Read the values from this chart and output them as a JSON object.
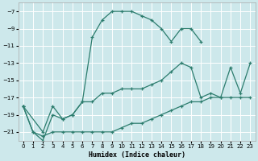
{
  "xlabel": "Humidex (Indice chaleur)",
  "background_color": "#cde8eb",
  "grid_color": "#ffffff",
  "line_color": "#2d7d6e",
  "xlim": [
    -0.5,
    23.5
  ],
  "ylim": [
    -22,
    -6
  ],
  "xticks": [
    0,
    1,
    2,
    3,
    4,
    5,
    6,
    7,
    8,
    9,
    10,
    11,
    12,
    13,
    14,
    15,
    16,
    17,
    18,
    19,
    20,
    21,
    22,
    23
  ],
  "yticks": [
    -7,
    -9,
    -11,
    -13,
    -15,
    -17,
    -19,
    -21
  ],
  "line1_x": [
    0,
    1,
    2,
    3,
    4,
    5,
    6,
    7,
    8,
    9,
    10,
    11,
    12,
    13,
    14,
    15,
    16,
    17,
    18
  ],
  "line1_y": [
    -18,
    -21,
    -22,
    -19,
    -19.5,
    -19,
    -17.5,
    -10,
    -8,
    -7,
    -7,
    -7,
    -7.5,
    -8,
    -9,
    -10.5,
    -9,
    -9,
    -10.5
  ],
  "line2_x": [
    0,
    2,
    3,
    4,
    5,
    6,
    7,
    8,
    9,
    10,
    11,
    12,
    13,
    14,
    15,
    16,
    17,
    18,
    19,
    20,
    21,
    22,
    23
  ],
  "line2_y": [
    -18,
    -21,
    -18,
    -19.5,
    -19,
    -17.5,
    -17.5,
    -16.5,
    -16.5,
    -16,
    -16,
    -16,
    -15.5,
    -15,
    -14,
    -13,
    -13.5,
    -17,
    -16.5,
    -17,
    -13.5,
    -16.5,
    -13
  ],
  "line3_x": [
    0,
    1,
    2,
    3,
    4,
    5,
    6,
    7,
    8,
    9,
    10,
    11,
    12,
    13,
    14,
    15,
    16,
    17,
    18,
    19,
    20,
    21,
    22,
    23
  ],
  "line3_y": [
    -18,
    -21,
    -21.5,
    -21,
    -21,
    -21,
    -21,
    -21,
    -21,
    -21,
    -20.5,
    -20,
    -20,
    -19.5,
    -19,
    -18.5,
    -18,
    -17.5,
    -17.5,
    -17,
    -17,
    -17,
    -17,
    -17
  ]
}
